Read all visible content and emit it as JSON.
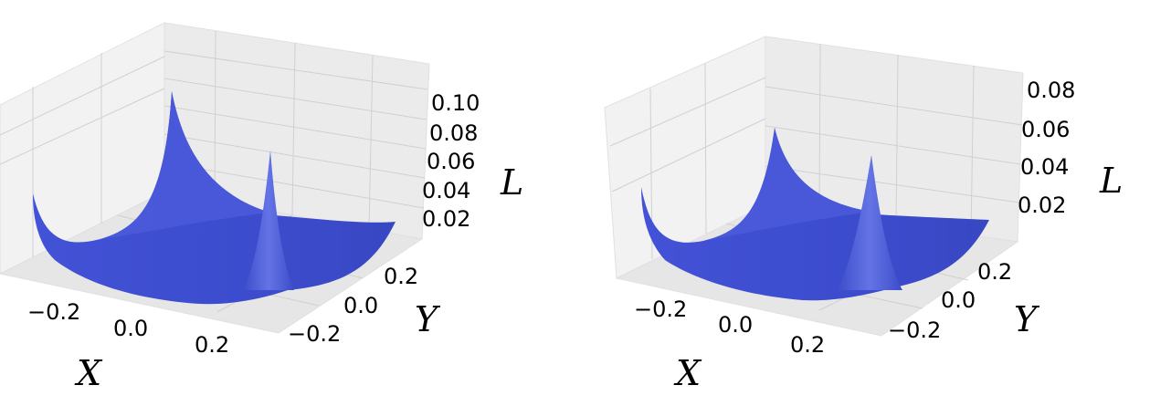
{
  "chart_data": [
    {
      "type": "surface3d",
      "xlabel": "X",
      "ylabel": "Y",
      "zlabel": "L",
      "x_ticks": [
        "−0.2",
        "0.0",
        "0.2"
      ],
      "y_ticks": [
        "−0.2",
        "0.0",
        "0.2"
      ],
      "z_ticks": [
        "0.02",
        "0.04",
        "0.06",
        "0.08",
        "0.10"
      ],
      "xlim": [
        -0.3,
        0.3
      ],
      "ylim": [
        -0.3,
        0.3
      ],
      "zlim": [
        0.0,
        0.11
      ],
      "surface_color": "#3f4fd0",
      "peaks": [
        {
          "x": 0.0,
          "y": 0.3,
          "z": 0.1
        },
        {
          "x": 0.3,
          "y": 0.2,
          "z": 0.066
        }
      ],
      "minimum_z": 0.0
    },
    {
      "type": "surface3d",
      "xlabel": "X",
      "ylabel": "Y",
      "zlabel": "L",
      "x_ticks": [
        "−0.2",
        "0.0",
        "0.2"
      ],
      "y_ticks": [
        "−0.2",
        "0.0",
        "0.2"
      ],
      "z_ticks": [
        "0.02",
        "0.04",
        "0.06",
        "0.08"
      ],
      "xlim": [
        -0.3,
        0.3
      ],
      "ylim": [
        -0.3,
        0.3
      ],
      "zlim": [
        0.0,
        0.085
      ],
      "surface_color": "#3f4fd0",
      "peaks": [
        {
          "x": 0.0,
          "y": 0.3,
          "z": 0.06
        },
        {
          "x": 0.3,
          "y": 0.2,
          "z": 0.052
        }
      ],
      "minimum_z": 0.0
    }
  ]
}
